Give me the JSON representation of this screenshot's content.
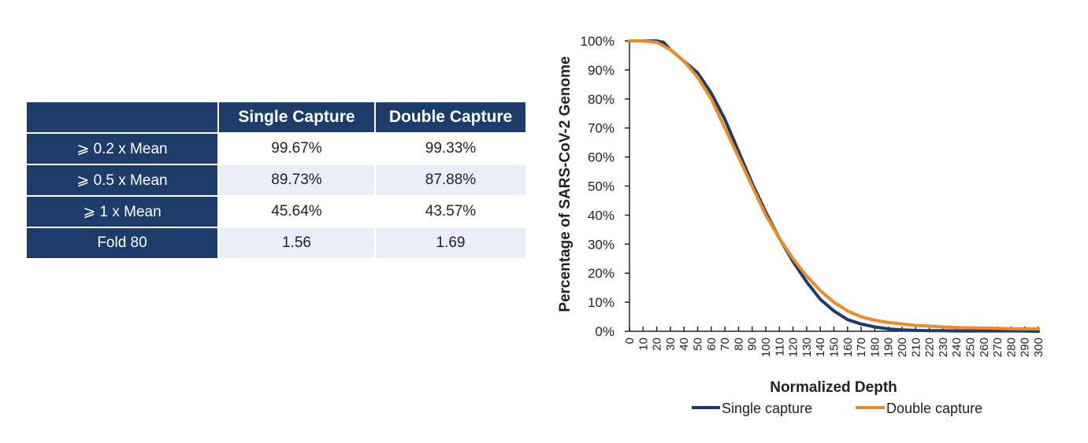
{
  "table": {
    "headers": [
      "",
      "Single Capture",
      "Double Capture"
    ],
    "rows": [
      {
        "label": "⩾ 0.2 x Mean",
        "single": "99.67%",
        "double": "99.33%"
      },
      {
        "label": "⩾ 0.5 x Mean",
        "single": "89.73%",
        "double": "87.88%"
      },
      {
        "label": "⩾ 1 x Mean",
        "single": "45.64%",
        "double": "43.57%"
      },
      {
        "label": "Fold 80",
        "single": "1.56",
        "double": "1.69"
      }
    ]
  },
  "chart_data": {
    "type": "line",
    "title": "",
    "xlabel": "Normalized Depth",
    "ylabel": "Percentage of SARS-CoV-2 Genome",
    "xlim": [
      0,
      300
    ],
    "ylim": [
      0,
      100
    ],
    "x_ticks": [
      0,
      10,
      20,
      30,
      40,
      50,
      60,
      70,
      80,
      90,
      100,
      110,
      120,
      130,
      140,
      150,
      160,
      170,
      180,
      190,
      200,
      210,
      220,
      230,
      240,
      250,
      260,
      270,
      280,
      290,
      300
    ],
    "y_ticks": [
      "0%",
      "10%",
      "20%",
      "30%",
      "40%",
      "50%",
      "60%",
      "70%",
      "80%",
      "90%",
      "100%"
    ],
    "grid": false,
    "legend_position": "bottom",
    "series": [
      {
        "name": "Single capture",
        "color": "#1d3c6a",
        "x": [
          0,
          10,
          20,
          25,
          30,
          40,
          50,
          60,
          70,
          80,
          90,
          100,
          110,
          120,
          130,
          140,
          150,
          160,
          170,
          180,
          190,
          200,
          210,
          220,
          230,
          240,
          250,
          260,
          270,
          280,
          290,
          300
        ],
        "y": [
          100,
          100,
          100,
          99.5,
          97,
          93,
          89,
          82,
          73,
          62,
          51,
          41,
          32,
          24,
          17,
          11,
          7,
          4,
          2.5,
          1.5,
          0.8,
          0.5,
          0.3,
          0.2,
          0.2,
          0.1,
          0.1,
          0.1,
          0.1,
          0.1,
          0.1,
          0
        ]
      },
      {
        "name": "Double capture",
        "color": "#f08a24",
        "x": [
          0,
          10,
          20,
          30,
          40,
          50,
          60,
          70,
          80,
          90,
          100,
          110,
          120,
          130,
          140,
          150,
          160,
          170,
          180,
          190,
          200,
          210,
          220,
          230,
          240,
          250,
          260,
          270,
          280,
          290,
          300
        ],
        "y": [
          100,
          100,
          99.5,
          97,
          93,
          87.5,
          80,
          70,
          60,
          50,
          40,
          32,
          25,
          19,
          14,
          10,
          7,
          5,
          3.8,
          3,
          2.5,
          2,
          1.8,
          1.5,
          1.3,
          1.2,
          1.1,
          1,
          0.9,
          0.8,
          0.8
        ]
      }
    ]
  }
}
